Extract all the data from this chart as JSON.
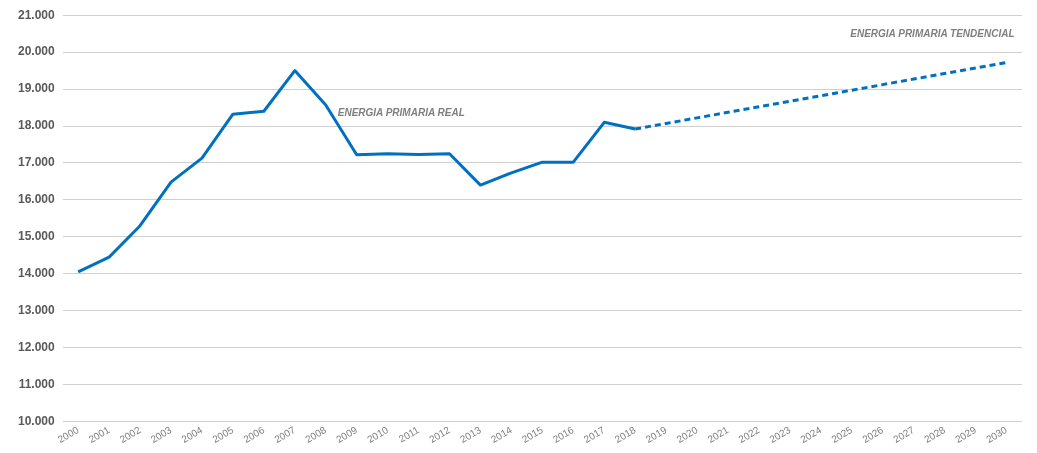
{
  "chart_data": {
    "type": "line",
    "categories": [
      "2000",
      "2001",
      "2002",
      "2003",
      "2004",
      "2005",
      "2006",
      "2007",
      "2008",
      "2009",
      "2010",
      "2011",
      "2012",
      "2013",
      "2014",
      "2015",
      "2016",
      "2017",
      "2018",
      "2019",
      "2020",
      "2021",
      "2022",
      "2023",
      "2024",
      "2025",
      "2026",
      "2027",
      "2028",
      "2029",
      "2030"
    ],
    "series": [
      {
        "name": "ENERGIA PRIMARIA REAL",
        "color": "#0070c0",
        "line_style": "solid",
        "values": [
          14050,
          14450,
          15300,
          16480,
          17130,
          18320,
          18400,
          19500,
          18570,
          17220,
          17250,
          17230,
          17250,
          16400,
          16730,
          17020,
          17020,
          18100,
          17920,
          null,
          null,
          null,
          null,
          null,
          null,
          null,
          null,
          null,
          null,
          null,
          null
        ]
      },
      {
        "name": "ENERGIA PRIMARIA TENDENCIAL",
        "color": "#0070c0",
        "line_style": "dashed",
        "values": [
          null,
          null,
          null,
          null,
          null,
          null,
          null,
          null,
          null,
          null,
          null,
          null,
          null,
          null,
          null,
          null,
          null,
          null,
          17920,
          18070,
          18220,
          18370,
          18520,
          18670,
          18820,
          18970,
          19120,
          19270,
          19420,
          19570,
          19720
        ]
      }
    ],
    "ylim": [
      10000,
      21000
    ],
    "yticks": [
      {
        "value": 10000,
        "label": "10.000"
      },
      {
        "value": 11000,
        "label": "11.000"
      },
      {
        "value": 12000,
        "label": "12.000"
      },
      {
        "value": 13000,
        "label": "13.000"
      },
      {
        "value": 14000,
        "label": "14.000"
      },
      {
        "value": 15000,
        "label": "15.000"
      },
      {
        "value": 16000,
        "label": "16.000"
      },
      {
        "value": 17000,
        "label": "17.000"
      },
      {
        "value": 18000,
        "label": "18.000"
      },
      {
        "value": 19000,
        "label": "19.000"
      },
      {
        "value": 20000,
        "label": "20.000"
      },
      {
        "value": 21000,
        "label": "21.000"
      }
    ],
    "grid": "y",
    "marker": "none",
    "legend": false
  }
}
